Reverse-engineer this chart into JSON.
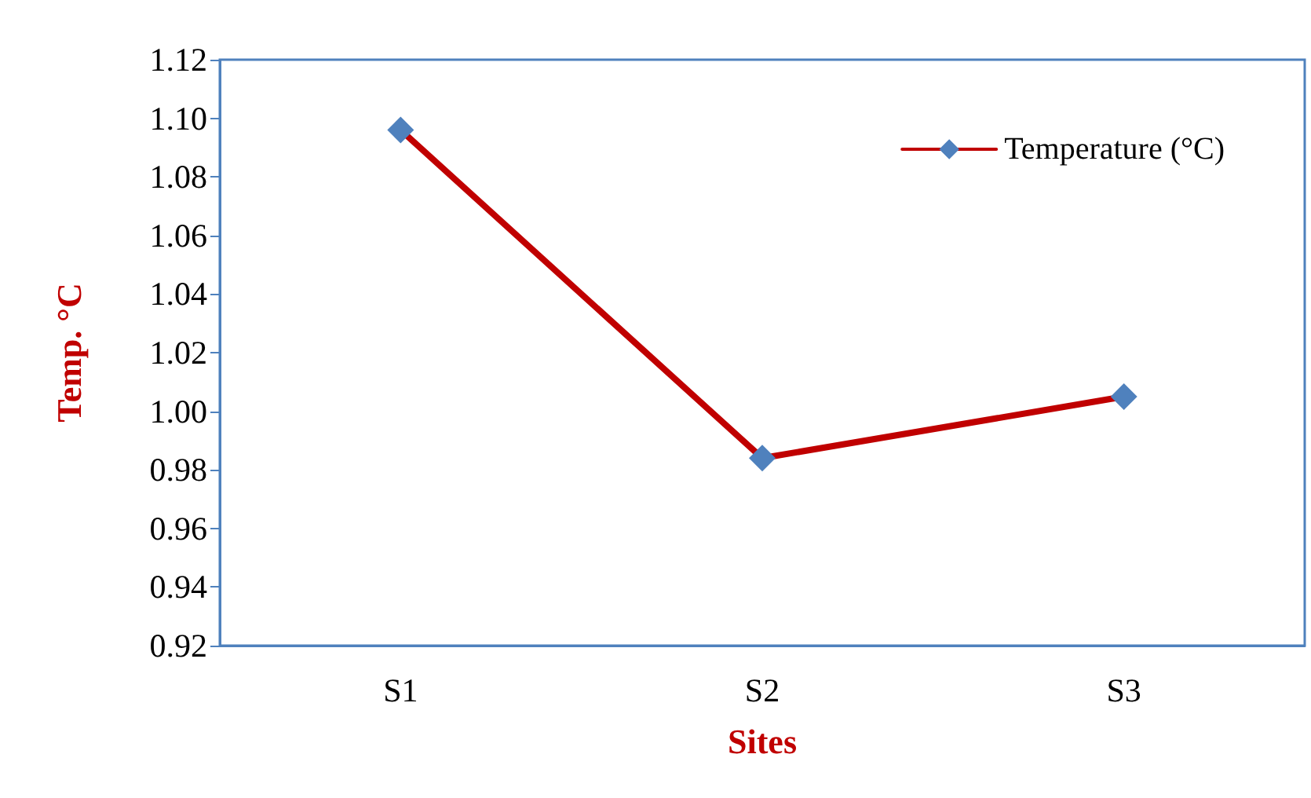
{
  "chart_data": {
    "type": "line",
    "xlabel": "Sites",
    "ylabel": "Temp. °C",
    "categories": [
      "S1",
      "S2",
      "S3"
    ],
    "series": [
      {
        "name": "Temperature (°C)",
        "color": "#c00000",
        "values": [
          1.096,
          0.984,
          1.005
        ]
      }
    ],
    "ylim": [
      0.92,
      1.12
    ],
    "yticks": [
      0.92,
      0.94,
      0.96,
      0.98,
      {
        "value": 1.0,
        "label": "1.00"
      },
      1.02,
      1.04,
      1.06,
      1.08,
      {
        "value": 1.1,
        "label": "1.10"
      },
      1.12
    ],
    "grid": false,
    "legend": "top right",
    "marker": "diamond",
    "line_style": "solid"
  }
}
